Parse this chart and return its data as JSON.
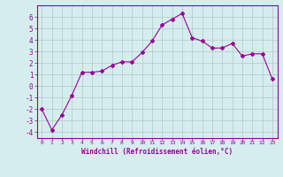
{
  "xlabel": "Windchill (Refroidissement éolien,°C)",
  "x": [
    0,
    1,
    2,
    3,
    4,
    5,
    6,
    7,
    8,
    9,
    10,
    11,
    12,
    13,
    14,
    15,
    16,
    17,
    18,
    19,
    20,
    21,
    22,
    23
  ],
  "y": [
    -2.0,
    -3.8,
    -2.5,
    -0.8,
    1.2,
    1.2,
    1.3,
    1.8,
    2.1,
    2.1,
    2.9,
    3.9,
    5.3,
    5.8,
    6.3,
    4.2,
    3.9,
    3.3,
    3.3,
    3.7,
    2.6,
    2.8,
    2.8,
    0.6
  ],
  "line_color": "#990099",
  "marker": "D",
  "marker_size": 2.0,
  "bg_color": "#d5eeed",
  "grid_color": "#b0c8c8",
  "ylim": [
    -4.5,
    7.0
  ],
  "xlim": [
    -0.5,
    23.5
  ],
  "yticks": [
    -4,
    -3,
    -2,
    -1,
    0,
    1,
    2,
    3,
    4,
    5,
    6
  ],
  "xticks": [
    0,
    1,
    2,
    3,
    4,
    5,
    6,
    7,
    8,
    9,
    10,
    11,
    12,
    13,
    14,
    15,
    16,
    17,
    18,
    19,
    20,
    21,
    22,
    23
  ],
  "tick_color": "#990099",
  "label_color": "#990099",
  "spine_color": "#990099",
  "xtick_fontsize": 4.5,
  "ytick_fontsize": 5.5,
  "xlabel_fontsize": 5.5
}
